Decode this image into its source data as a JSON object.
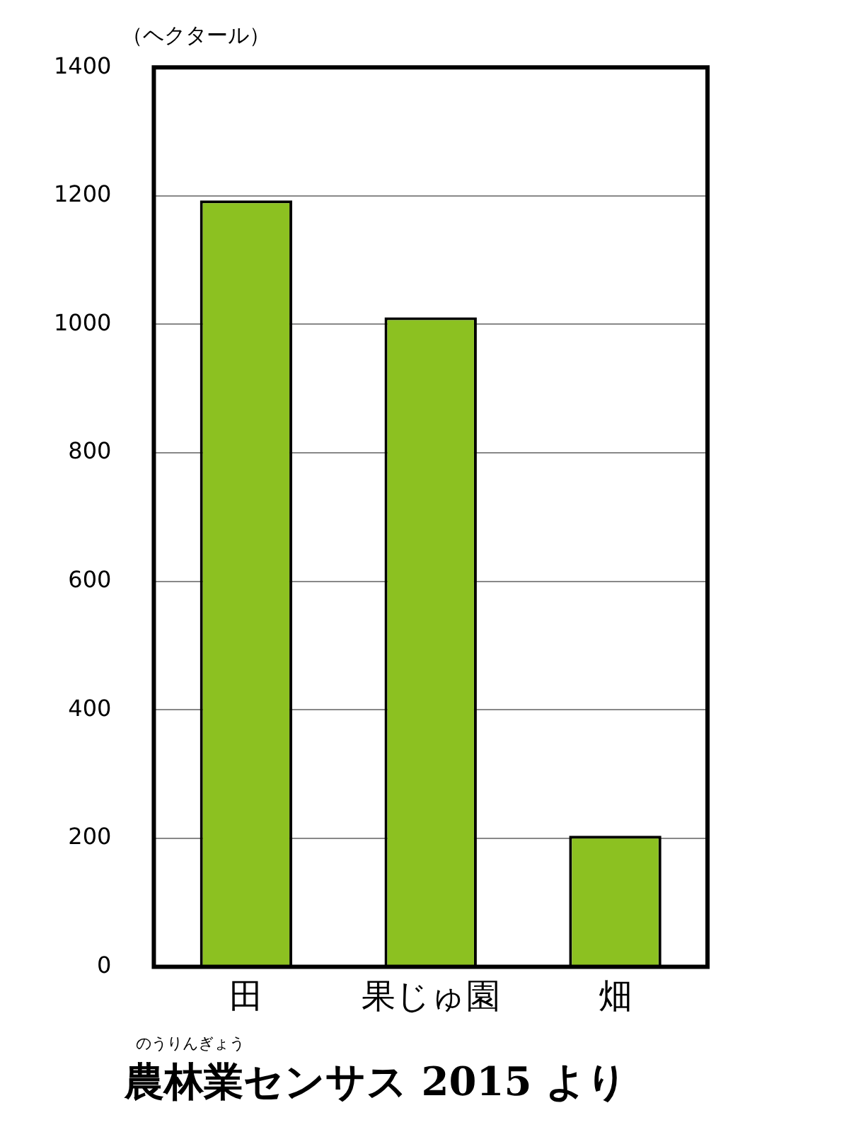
{
  "chart_data": {
    "type": "bar",
    "ylabel": "（ヘクタール）",
    "categories": [
      "田",
      "果じゅ園",
      "畑"
    ],
    "values": [
      1193,
      1011,
      204
    ],
    "color": "#8cc121",
    "ylim": [
      0,
      1400
    ],
    "yticks": [
      0,
      200,
      400,
      600,
      800,
      1000,
      1200,
      1400
    ],
    "grid": "y",
    "annotations": [
      "のうりんぎょう",
      "農林業センサス 2015 より"
    ]
  }
}
